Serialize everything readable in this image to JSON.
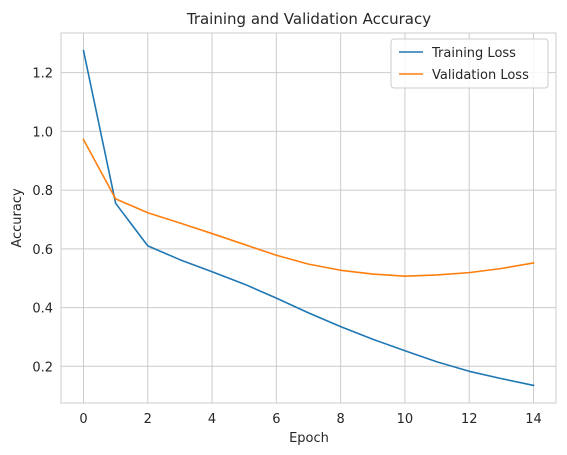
{
  "chart_data": {
    "type": "line",
    "title": "Training and Validation Accuracy",
    "xlabel": "Epoch",
    "ylabel": "Accuracy",
    "xlim": [
      -0.7,
      14.7
    ],
    "ylim": [
      0.075,
      1.335
    ],
    "x_ticks": [
      0,
      2,
      4,
      6,
      8,
      10,
      12,
      14
    ],
    "y_ticks": [
      0.2,
      0.4,
      0.6,
      0.8,
      1.0,
      1.2
    ],
    "x_tick_labels": [
      "0",
      "2",
      "4",
      "6",
      "8",
      "10",
      "12",
      "14"
    ],
    "y_tick_labels": [
      "0.2",
      "0.4",
      "0.6",
      "0.8",
      "1.0",
      "1.2"
    ],
    "grid": true,
    "legend": "top-right",
    "x": [
      0,
      1,
      2,
      3,
      4,
      5,
      6,
      7,
      8,
      9,
      10,
      11,
      12,
      13,
      14
    ],
    "series": [
      {
        "name": "Training Loss",
        "color": "#1f77b4",
        "values": [
          1.275,
          0.755,
          0.61,
          0.563,
          0.522,
          0.48,
          0.432,
          0.382,
          0.335,
          0.292,
          0.253,
          0.215,
          0.183,
          0.158,
          0.135
        ]
      },
      {
        "name": "Validation Loss",
        "color": "#ff7f0e",
        "values": [
          0.972,
          0.77,
          0.723,
          0.688,
          0.652,
          0.615,
          0.578,
          0.548,
          0.527,
          0.514,
          0.507,
          0.511,
          0.519,
          0.533,
          0.552
        ]
      }
    ]
  }
}
